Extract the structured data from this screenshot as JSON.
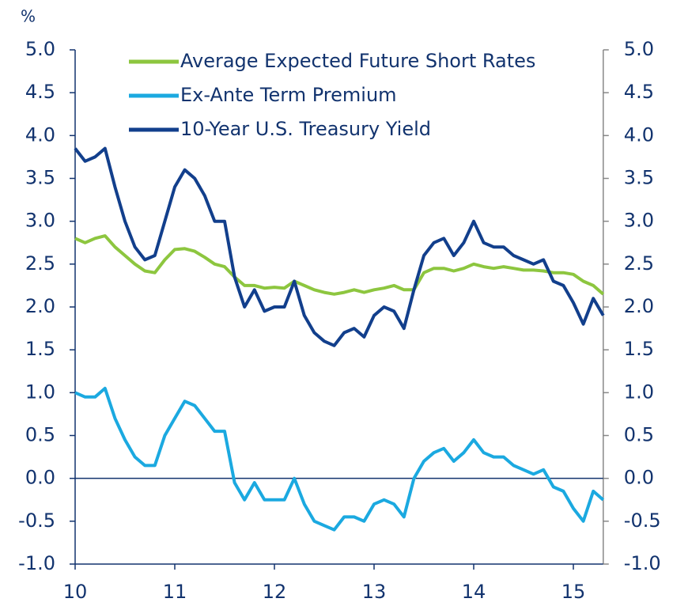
{
  "chart_data": {
    "type": "line",
    "ylabel": "%",
    "x": [
      10.0,
      10.1,
      10.2,
      10.3,
      10.4,
      10.5,
      10.6,
      10.7,
      10.8,
      10.9,
      11.0,
      11.1,
      11.2,
      11.3,
      11.4,
      11.5,
      11.6,
      11.7,
      11.8,
      11.9,
      12.0,
      12.1,
      12.2,
      12.3,
      12.4,
      12.5,
      12.6,
      12.7,
      12.8,
      12.9,
      13.0,
      13.1,
      13.2,
      13.3,
      13.4,
      13.5,
      13.6,
      13.7,
      13.8,
      13.9,
      14.0,
      14.1,
      14.2,
      14.3,
      14.4,
      14.5,
      14.6,
      14.7,
      14.8,
      14.9,
      15.0,
      15.1,
      15.2,
      15.3
    ],
    "series": [
      {
        "name": "Average Expected Future Short Rates",
        "color": "#8dc63f",
        "values": [
          2.8,
          2.75,
          2.8,
          2.83,
          2.7,
          2.6,
          2.5,
          2.42,
          2.4,
          2.55,
          2.67,
          2.68,
          2.65,
          2.58,
          2.5,
          2.47,
          2.35,
          2.25,
          2.25,
          2.22,
          2.23,
          2.22,
          2.3,
          2.25,
          2.2,
          2.17,
          2.15,
          2.17,
          2.2,
          2.17,
          2.2,
          2.22,
          2.25,
          2.2,
          2.2,
          2.4,
          2.45,
          2.45,
          2.42,
          2.45,
          2.5,
          2.47,
          2.45,
          2.47,
          2.45,
          2.43,
          2.43,
          2.42,
          2.4,
          2.4,
          2.38,
          2.3,
          2.25,
          2.15
        ]
      },
      {
        "name": "Ex-Ante Term Premium",
        "color": "#1ba9e0",
        "values": [
          1.0,
          0.95,
          0.95,
          1.05,
          0.7,
          0.45,
          0.25,
          0.15,
          0.15,
          0.5,
          0.7,
          0.9,
          0.85,
          0.7,
          0.55,
          0.55,
          -0.05,
          -0.25,
          -0.05,
          -0.25,
          -0.25,
          -0.25,
          0.0,
          -0.3,
          -0.5,
          -0.55,
          -0.6,
          -0.45,
          -0.45,
          -0.5,
          -0.3,
          -0.25,
          -0.3,
          -0.45,
          0.0,
          0.2,
          0.3,
          0.35,
          0.2,
          0.3,
          0.45,
          0.3,
          0.25,
          0.25,
          0.15,
          0.1,
          0.05,
          0.1,
          -0.1,
          -0.15,
          -0.35,
          -0.5,
          -0.15,
          -0.25
        ]
      },
      {
        "name": "10-Year U.S. Treasury Yield",
        "color": "#123f8c",
        "values": [
          3.85,
          3.7,
          3.75,
          3.85,
          3.4,
          3.0,
          2.7,
          2.55,
          2.6,
          3.0,
          3.4,
          3.6,
          3.5,
          3.3,
          3.0,
          3.0,
          2.35,
          2.0,
          2.2,
          1.95,
          2.0,
          2.0,
          2.3,
          1.9,
          1.7,
          1.6,
          1.55,
          1.7,
          1.75,
          1.65,
          1.9,
          2.0,
          1.95,
          1.75,
          2.2,
          2.6,
          2.75,
          2.8,
          2.6,
          2.75,
          3.0,
          2.75,
          2.7,
          2.7,
          2.6,
          2.55,
          2.5,
          2.55,
          2.3,
          2.25,
          2.05,
          1.8,
          2.1,
          1.9
        ]
      }
    ],
    "xlim": [
      10,
      15.3
    ],
    "xticks": [
      10,
      11,
      12,
      13,
      14,
      15
    ],
    "ylim": [
      -1,
      5
    ],
    "yticks": [
      {
        "value": -1,
        "label": "-1.0"
      },
      -0.5,
      {
        "value": 0,
        "label": "0.0"
      },
      0.5,
      {
        "value": 1,
        "label": "1.0"
      },
      1.5,
      {
        "value": 2,
        "label": "2.0"
      },
      2.5,
      {
        "value": 3,
        "label": "3.0"
      },
      3.5,
      {
        "value": 4,
        "label": "4.0"
      },
      4.5,
      {
        "value": 5,
        "label": "5.0"
      }
    ],
    "y2lim": [
      -1,
      5
    ],
    "y2ticks": [
      {
        "value": -1,
        "label": "-1.0"
      },
      -0.5,
      {
        "value": 0,
        "label": "0.0"
      },
      0.5,
      {
        "value": 1,
        "label": "1.0"
      },
      1.5,
      {
        "value": 2,
        "label": "2.0"
      },
      2.5,
      {
        "value": 3,
        "label": "3.0"
      },
      3.5,
      {
        "value": 4,
        "label": "4.0"
      },
      4.5,
      {
        "value": 5,
        "label": "5.0"
      }
    ],
    "legend": "top"
  }
}
